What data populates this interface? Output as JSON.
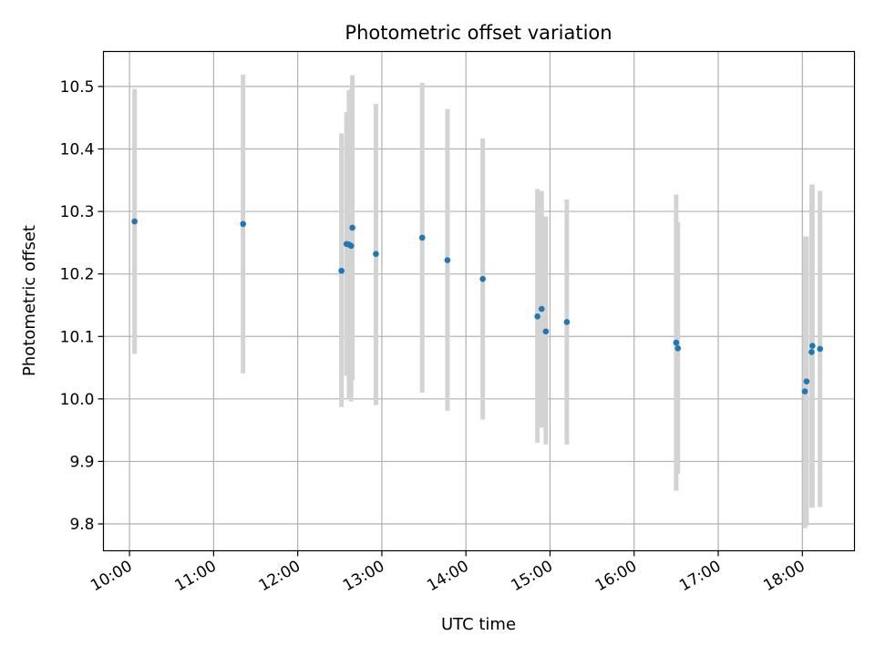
{
  "chart_data": {
    "type": "scatter",
    "title": "Photometric offset variation",
    "xlabel": "UTC time",
    "ylabel": "Photometric offset",
    "x_unit": "hours UTC",
    "xlim": [
      9.69,
      18.62
    ],
    "ylim": [
      9.757,
      10.556
    ],
    "grid": true,
    "x_ticks": [
      {
        "value": 10,
        "label": "10:00"
      },
      {
        "value": 11,
        "label": "11:00"
      },
      {
        "value": 12,
        "label": "12:00"
      },
      {
        "value": 13,
        "label": "13:00"
      },
      {
        "value": 14,
        "label": "14:00"
      },
      {
        "value": 15,
        "label": "15:00"
      },
      {
        "value": 16,
        "label": "16:00"
      },
      {
        "value": 17,
        "label": "17:00"
      },
      {
        "value": 18,
        "label": "18:00"
      }
    ],
    "y_ticks": [
      {
        "value": 9.8,
        "label": "9.8"
      },
      {
        "value": 9.9,
        "label": "9.9"
      },
      {
        "value": 10.0,
        "label": "10.0"
      },
      {
        "value": 10.1,
        "label": "10.1"
      },
      {
        "value": 10.2,
        "label": "10.2"
      },
      {
        "value": 10.3,
        "label": "10.3"
      },
      {
        "value": 10.4,
        "label": "10.4"
      },
      {
        "value": 10.5,
        "label": "10.5"
      }
    ],
    "point_color": "#1f77b4",
    "errorbar_color": "#d3d3d3",
    "points": [
      {
        "x": 10.06,
        "y": 10.284,
        "err_lo": 10.072,
        "err_hi": 10.496
      },
      {
        "x": 11.35,
        "y": 10.28,
        "err_lo": 10.041,
        "err_hi": 10.519
      },
      {
        "x": 12.52,
        "y": 10.205,
        "err_lo": 9.987,
        "err_hi": 10.425
      },
      {
        "x": 12.58,
        "y": 10.248,
        "err_lo": 10.037,
        "err_hi": 10.459
      },
      {
        "x": 12.61,
        "y": 10.247,
        "err_lo": 10.0,
        "err_hi": 10.494
      },
      {
        "x": 12.635,
        "y": 10.245,
        "err_lo": 9.996,
        "err_hi": 10.496
      },
      {
        "x": 12.65,
        "y": 10.274,
        "err_lo": 10.03,
        "err_hi": 10.518
      },
      {
        "x": 12.93,
        "y": 10.232,
        "err_lo": 9.99,
        "err_hi": 10.472
      },
      {
        "x": 13.48,
        "y": 10.258,
        "err_lo": 10.01,
        "err_hi": 10.506
      },
      {
        "x": 13.78,
        "y": 10.222,
        "err_lo": 9.981,
        "err_hi": 10.464
      },
      {
        "x": 14.2,
        "y": 10.192,
        "err_lo": 9.967,
        "err_hi": 10.417
      },
      {
        "x": 14.85,
        "y": 10.132,
        "err_lo": 9.93,
        "err_hi": 10.336
      },
      {
        "x": 14.9,
        "y": 10.144,
        "err_lo": 9.954,
        "err_hi": 10.333
      },
      {
        "x": 14.95,
        "y": 10.108,
        "err_lo": 9.927,
        "err_hi": 10.292
      },
      {
        "x": 15.2,
        "y": 10.123,
        "err_lo": 9.927,
        "err_hi": 10.319
      },
      {
        "x": 16.5,
        "y": 10.09,
        "err_lo": 9.853,
        "err_hi": 10.327
      },
      {
        "x": 16.52,
        "y": 10.081,
        "err_lo": 9.88,
        "err_hi": 10.283
      },
      {
        "x": 18.03,
        "y": 10.012,
        "err_lo": 9.793,
        "err_hi": 10.26
      },
      {
        "x": 18.05,
        "y": 10.028,
        "err_lo": 9.797,
        "err_hi": 10.26
      },
      {
        "x": 18.11,
        "y": 10.075,
        "err_lo": 9.826,
        "err_hi": 10.343
      },
      {
        "x": 18.12,
        "y": 10.085,
        "err_lo": 9.826,
        "err_hi": 10.343
      },
      {
        "x": 18.21,
        "y": 10.08,
        "err_lo": 9.827,
        "err_hi": 10.333
      }
    ]
  }
}
